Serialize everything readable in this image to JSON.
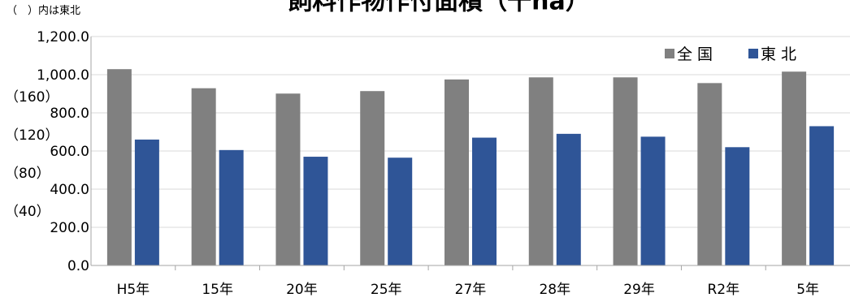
{
  "chart_data": {
    "type": "bar",
    "title": "飼料作物作付面積（千ha）",
    "note": "（　）内は東北",
    "categories": [
      "H5年",
      "15年",
      "20年",
      "25年",
      "27年",
      "28年",
      "29年",
      "R2年",
      "5年"
    ],
    "ylim": [
      0,
      1200
    ],
    "yticks": [
      "0.0",
      "200.0",
      "400.0",
      "600.0",
      "800.0",
      "1,000.0",
      "1,200.0"
    ],
    "secondary_ticks": [
      "（40）",
      "（80）",
      "（120）",
      "（160）"
    ],
    "series": [
      {
        "name": "全 国",
        "color": "#808080",
        "values": [
          1029,
          929,
          901,
          914,
          975,
          986,
          986,
          956,
          1016
        ]
      },
      {
        "name": "東 北",
        "color": "#2F5597",
        "values": [
          132,
          121,
          114,
          113,
          134,
          138,
          135,
          124,
          146
        ]
      }
    ],
    "series_scale": [
      1,
      5
    ],
    "legend_position": "top-right",
    "grid": true
  }
}
